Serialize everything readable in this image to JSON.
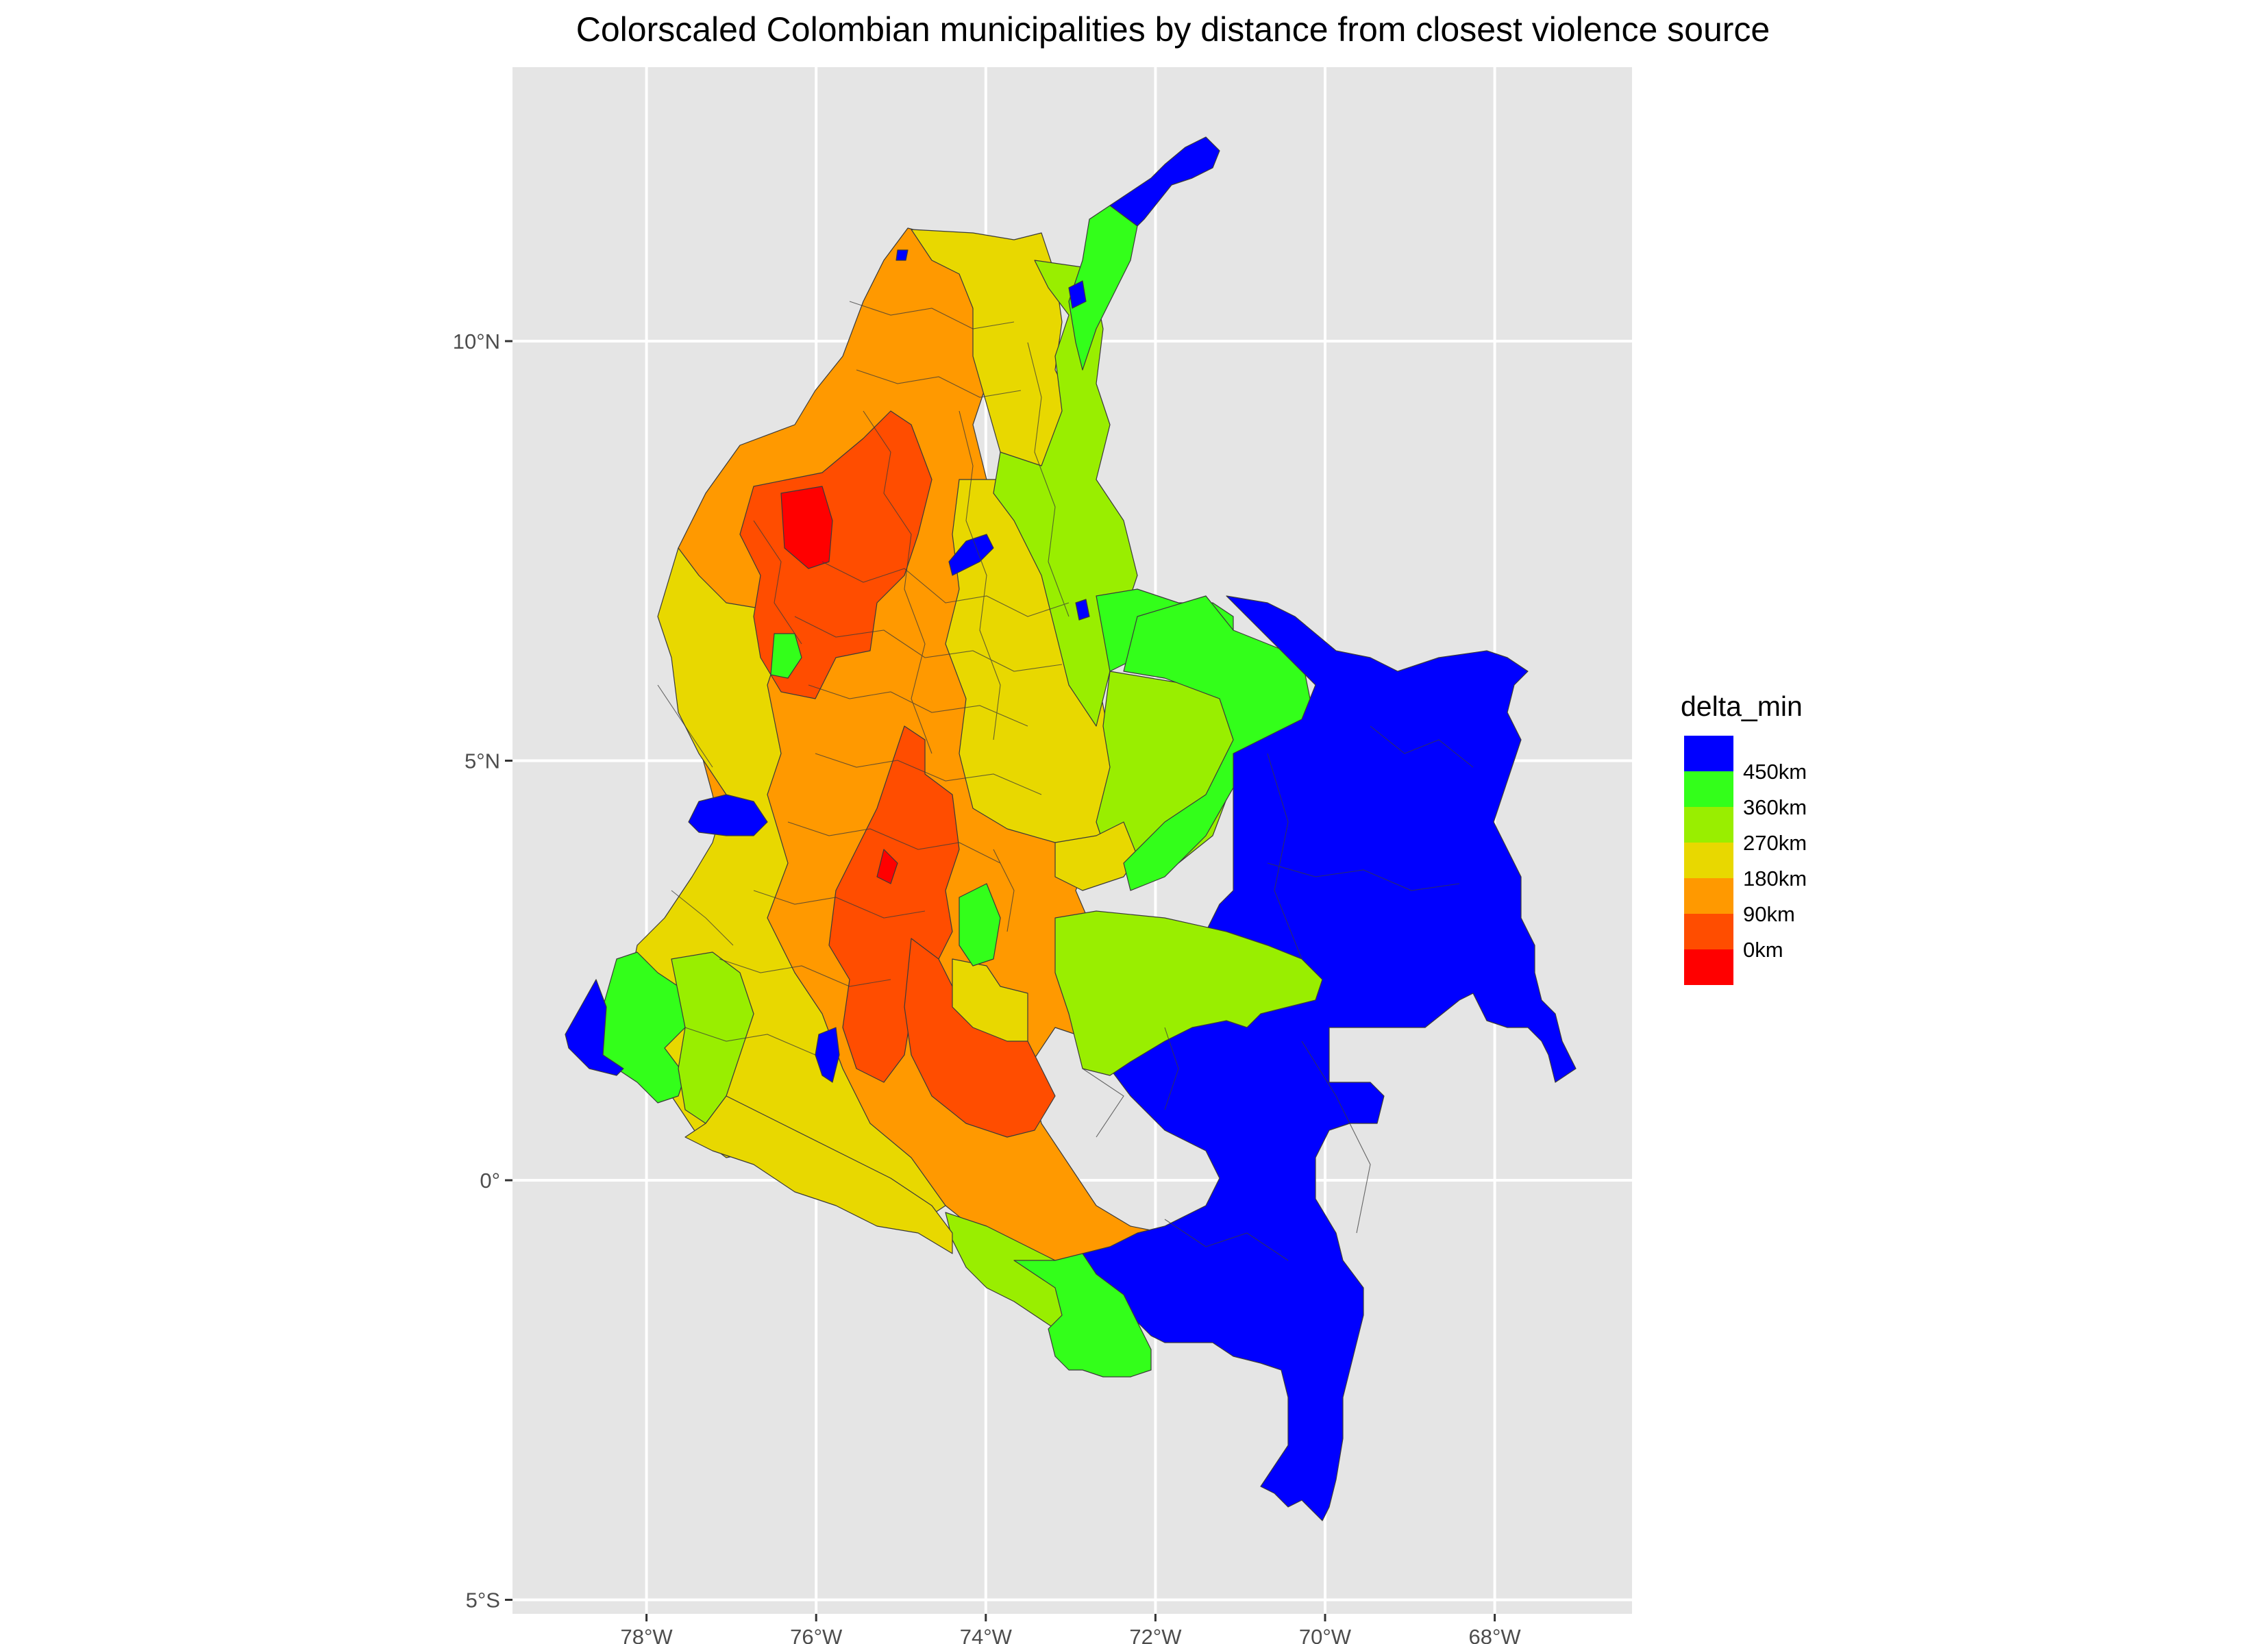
{
  "title": "Colorscaled Colombian municipalities by distance from closest violence source",
  "x_axis": {
    "ticks": [
      {
        "value": -78,
        "label": "78°W"
      },
      {
        "value": -76,
        "label": "76°W"
      },
      {
        "value": -74,
        "label": "74°W"
      },
      {
        "value": -72,
        "label": "72°W"
      },
      {
        "value": -70,
        "label": "70°W"
      },
      {
        "value": -68,
        "label": "68°W"
      }
    ]
  },
  "y_axis": {
    "ticks": [
      {
        "value": 10,
        "label": "10°N"
      },
      {
        "value": 5,
        "label": "5°N"
      },
      {
        "value": 0,
        "label": "0°"
      },
      {
        "value": -5,
        "label": "5°S"
      }
    ]
  },
  "legend": {
    "title": "delta_min",
    "entries": [
      {
        "label": "450km",
        "color": "#0000ff"
      },
      {
        "label": "360km",
        "color": "#33ff1a"
      },
      {
        "label": "270km",
        "color": "#99ee00"
      },
      {
        "label": "180km",
        "color": "#e8d800"
      },
      {
        "label": "90km",
        "color": "#ff9900"
      },
      {
        "label": "0km",
        "color": "#ff4d00"
      },
      {
        "label": "",
        "color": "#ff0000"
      }
    ]
  },
  "colors": {
    "panel_background": "#e5e5e5",
    "grid": "#ffffff",
    "border": "#3a3a3a"
  }
}
